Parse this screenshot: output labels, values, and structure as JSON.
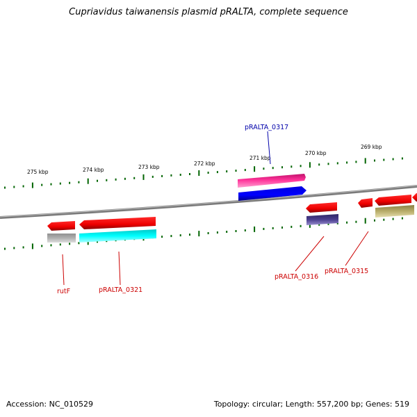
{
  "title": "Cupriavidus taiwanensis plasmid pRALTA, complete sequence",
  "footer": {
    "accession": "Accession: NC_010529",
    "summary": "Topology: circular; Length: 557,200 bp; Genes: 519"
  },
  "colors": {
    "backbone": "#808080",
    "tick": "#006400",
    "cds": "#ff0000",
    "label_forward": "#0000aa",
    "label_reverse": "#cc0000"
  },
  "scale_labels": [
    "275 kbp",
    "274 kbp",
    "273 kbp",
    "272 kbp",
    "271 kbp",
    "270 kbp",
    "269 kbp"
  ],
  "features": [
    {
      "name": "pRALTA_0317",
      "strand": "forward",
      "type": "CDS",
      "gene_color": "#ff3399",
      "product_color": "#0000ff"
    },
    {
      "name": "rutF",
      "strand": "reverse",
      "type": "CDS",
      "gene_color": "#ff0000",
      "product_color": "#aaaaaa"
    },
    {
      "name": "pRALTA_0321",
      "strand": "reverse",
      "type": "CDS",
      "gene_color": "#ff0000",
      "product_color": "#00ffff"
    },
    {
      "name": "pRALTA_0316",
      "strand": "reverse",
      "type": "CDS",
      "gene_color": "#ff0000",
      "product_color": "#4b3f8f"
    },
    {
      "name": "pRALTA_0315",
      "strand": "reverse",
      "type": "CDS",
      "gene_color": "#ff0000",
      "product_color": "#b8ad6a"
    }
  ]
}
